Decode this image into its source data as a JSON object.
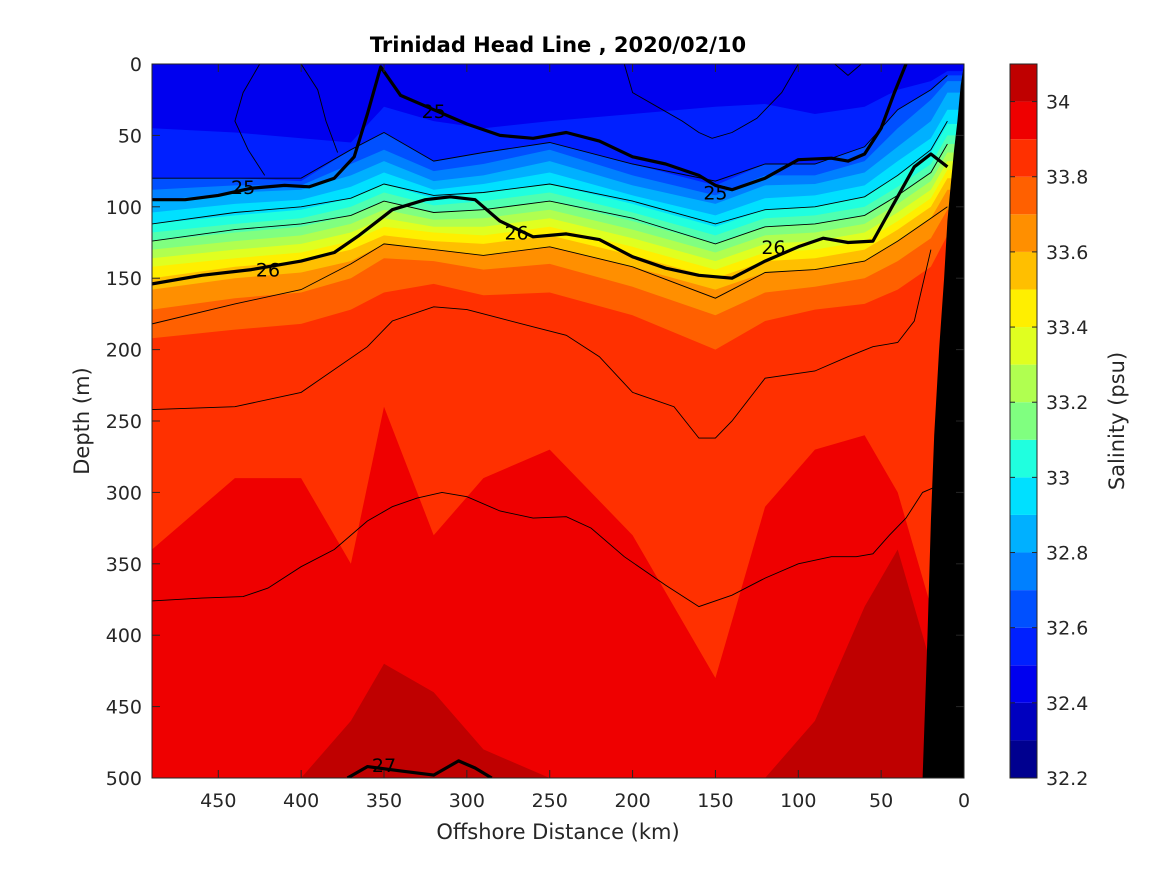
{
  "chart_data": {
    "type": "contour",
    "title": "Trinidad Head Line , 2020/02/10",
    "xlabel": "Offshore Distance (km)",
    "ylabel": "Depth (m)",
    "xlim": [
      490,
      0
    ],
    "ylim": [
      0,
      500
    ],
    "x_reversed": true,
    "y_reversed": true,
    "x_ticks": [
      450,
      400,
      350,
      300,
      250,
      200,
      150,
      100,
      50,
      0
    ],
    "y_ticks": [
      0,
      50,
      100,
      150,
      200,
      250,
      300,
      350,
      400,
      450,
      500
    ],
    "fill_variable": "Salinity (psu)",
    "colorbar": {
      "label": "Salinity (psu)",
      "min": 32.2,
      "max": 34.1,
      "step": 0.1,
      "ticks": [
        32.2,
        32.4,
        32.6,
        32.8,
        33,
        33.2,
        33.4,
        33.6,
        33.8,
        34
      ],
      "colors": [
        "#00008f",
        "#0000bf",
        "#0000ef",
        "#0020ff",
        "#0050ff",
        "#0080ff",
        "#00b0ff",
        "#00e0ff",
        "#20ffdf",
        "#50ffaf",
        "#80ff80",
        "#b0ff50",
        "#e0ff20",
        "#ffef00",
        "#ffbf00",
        "#ff8f00",
        "#ff6000",
        "#ff3000",
        "#ef0000",
        "#bf0000",
        "#8f0000"
      ]
    },
    "bathymetry_color": "#000000",
    "salinity_layers": [
      {
        "x": [
          490,
          440,
          400,
          370,
          350,
          320,
          290,
          250,
          200,
          150,
          120,
          90,
          60,
          40,
          20,
          10
        ],
        "depth": [
          45,
          48,
          52,
          55,
          30,
          40,
          45,
          40,
          35,
          30,
          28,
          35,
          30,
          18,
          12,
          5
        ],
        "salinity": 32.5
      },
      {
        "x": [
          490,
          440,
          400,
          370,
          350,
          320,
          290,
          250,
          200,
          150,
          120,
          90,
          60,
          40,
          20,
          10
        ],
        "depth": [
          80,
          80,
          82,
          60,
          48,
          68,
          62,
          55,
          70,
          85,
          70,
          70,
          58,
          32,
          18,
          8
        ],
        "salinity": 32.6
      },
      {
        "x": [
          490,
          440,
          400,
          370,
          350,
          320,
          290,
          250,
          200,
          150,
          120,
          90,
          60,
          40,
          20,
          10
        ],
        "depth": [
          88,
          85,
          85,
          70,
          60,
          75,
          70,
          60,
          78,
          92,
          78,
          78,
          68,
          45,
          25,
          12
        ],
        "salinity": 32.7
      },
      {
        "x": [
          490,
          440,
          400,
          370,
          350,
          320,
          290,
          250,
          200,
          150,
          120,
          90,
          60,
          40,
          20,
          10
        ],
        "depth": [
          96,
          90,
          88,
          78,
          68,
          82,
          78,
          68,
          85,
          98,
          85,
          84,
          76,
          58,
          40,
          20
        ],
        "salinity": 32.8
      },
      {
        "x": [
          490,
          440,
          400,
          370,
          350,
          320,
          290,
          250,
          200,
          150,
          120,
          90,
          60,
          40,
          20,
          10
        ],
        "depth": [
          104,
          98,
          95,
          86,
          76,
          88,
          84,
          76,
          92,
          106,
          94,
          92,
          85,
          68,
          52,
          32
        ],
        "salinity": 32.9
      },
      {
        "x": [
          490,
          440,
          400,
          370,
          350,
          320,
          290,
          250,
          200,
          150,
          120,
          90,
          60,
          40,
          20,
          10
        ],
        "depth": [
          112,
          106,
          102,
          94,
          84,
          94,
          90,
          84,
          98,
          114,
          102,
          100,
          93,
          78,
          62,
          42
        ],
        "salinity": 33.0
      },
      {
        "x": [
          490,
          440,
          400,
          370,
          350,
          320,
          290,
          250,
          200,
          150,
          120,
          90,
          60,
          40,
          20,
          10
        ],
        "depth": [
          118,
          112,
          108,
          100,
          90,
          99,
          96,
          90,
          104,
          120,
          108,
          106,
          100,
          86,
          70,
          50
        ],
        "salinity": 33.1
      },
      {
        "x": [
          490,
          440,
          400,
          370,
          350,
          320,
          290,
          250,
          200,
          150,
          120,
          90,
          60,
          40,
          20,
          10
        ],
        "depth": [
          124,
          118,
          114,
          106,
          96,
          104,
          102,
          96,
          110,
          126,
          114,
          112,
          106,
          92,
          76,
          56
        ],
        "salinity": 33.2
      },
      {
        "x": [
          490,
          440,
          400,
          370,
          350,
          320,
          290,
          250,
          200,
          150,
          120,
          90,
          60,
          40,
          20,
          10
        ],
        "depth": [
          130,
          124,
          120,
          112,
          102,
          109,
          108,
          102,
          116,
          132,
          120,
          118,
          112,
          98,
          82,
          62
        ],
        "salinity": 33.3
      },
      {
        "x": [
          490,
          440,
          400,
          370,
          350,
          320,
          290,
          250,
          200,
          150,
          120,
          90,
          60,
          40,
          20,
          10
        ],
        "depth": [
          136,
          130,
          126,
          118,
          108,
          114,
          114,
          108,
          122,
          138,
          126,
          124,
          118,
          104,
          88,
          68
        ],
        "salinity": 33.4
      },
      {
        "x": [
          490,
          440,
          400,
          370,
          350,
          320,
          290,
          250,
          200,
          150,
          120,
          90,
          60,
          40,
          20,
          10
        ],
        "depth": [
          142,
          136,
          132,
          124,
          114,
          118,
          120,
          114,
          128,
          144,
          132,
          130,
          124,
          110,
          94,
          74
        ],
        "salinity": 33.5
      },
      {
        "x": [
          490,
          440,
          400,
          370,
          350,
          320,
          290,
          250,
          200,
          150,
          120,
          90,
          60,
          40,
          20,
          10
        ],
        "depth": [
          150,
          142,
          138,
          130,
          120,
          124,
          126,
          120,
          134,
          150,
          138,
          136,
          130,
          116,
          100,
          80
        ],
        "salinity": 33.6
      },
      {
        "x": [
          490,
          440,
          400,
          370,
          350,
          320,
          290,
          250,
          200,
          150,
          120,
          90,
          60,
          40,
          20,
          10
        ],
        "depth": [
          158,
          150,
          146,
          138,
          126,
          130,
          134,
          128,
          142,
          158,
          146,
          144,
          138,
          124,
          108,
          88
        ],
        "salinity": 33.7
      },
      {
        "x": [
          490,
          440,
          400,
          370,
          350,
          320,
          290,
          250,
          200,
          150,
          120,
          90,
          60,
          40,
          20,
          10
        ],
        "depth": [
          172,
          164,
          160,
          150,
          136,
          138,
          144,
          140,
          156,
          176,
          160,
          156,
          150,
          138,
          122,
          102
        ],
        "salinity": 33.8
      },
      {
        "x": [
          490,
          440,
          400,
          370,
          350,
          320,
          290,
          250,
          200,
          150,
          120,
          90,
          60,
          40,
          20,
          10
        ],
        "depth": [
          192,
          186,
          182,
          172,
          160,
          154,
          162,
          160,
          176,
          200,
          180,
          172,
          168,
          158,
          142,
          120
        ],
        "salinity": 33.9
      },
      {
        "x": [
          490,
          440,
          400,
          370,
          350,
          320,
          290,
          250,
          200,
          150,
          120,
          90,
          60,
          40,
          20,
          10
        ],
        "depth": [
          340,
          290,
          290,
          350,
          240,
          330,
          290,
          270,
          330,
          430,
          310,
          270,
          260,
          300,
          380,
          400
        ],
        "salinity": 34.0
      },
      {
        "x": [
          490,
          440,
          400,
          370,
          350,
          320,
          290,
          250,
          200,
          150,
          120,
          90,
          60,
          40,
          20,
          10
        ],
        "depth": [
          510,
          510,
          500,
          460,
          420,
          440,
          480,
          500,
          510,
          510,
          500,
          460,
          380,
          340,
          420,
          500
        ],
        "salinity": 34.1
      }
    ],
    "density_contours": [
      {
        "label": "25",
        "x": [
          490,
          470,
          450,
          430,
          410,
          395,
          380,
          368,
          360,
          352,
          340,
          320,
          300,
          280,
          260,
          240,
          220,
          200,
          180,
          160,
          150,
          140,
          120,
          100,
          80,
          70,
          60,
          50,
          42,
          35
        ],
        "depth": [
          95,
          95,
          92,
          87,
          85,
          86,
          80,
          65,
          35,
          2,
          22,
          32,
          42,
          50,
          52,
          48,
          54,
          65,
          70,
          78,
          85,
          88,
          80,
          67,
          66,
          68,
          63,
          45,
          20,
          0
        ],
        "label_positions": [
          {
            "x": 435,
            "depth": 86
          },
          {
            "x": 320,
            "depth": 33
          },
          {
            "x": 150,
            "depth": 90
          }
        ]
      },
      {
        "label": "26",
        "x": [
          490,
          460,
          430,
          400,
          380,
          365,
          345,
          325,
          310,
          295,
          280,
          260,
          240,
          220,
          200,
          180,
          160,
          140,
          120,
          100,
          85,
          70,
          55,
          30,
          20,
          10
        ],
        "depth": [
          154,
          148,
          144,
          138,
          132,
          120,
          102,
          95,
          93,
          95,
          110,
          121,
          119,
          123,
          135,
          143,
          148,
          150,
          138,
          128,
          122,
          125,
          124,
          72,
          63,
          72
        ],
        "label_positions": [
          {
            "x": 420,
            "depth": 144
          },
          {
            "x": 270,
            "depth": 118
          },
          {
            "x": 115,
            "depth": 128
          }
        ]
      },
      {
        "label": "27",
        "x": [
          372,
          360,
          340,
          320,
          305,
          295,
          285
        ],
        "depth": [
          500,
          492,
          495,
          498,
          488,
          493,
          500
        ],
        "label_positions": [
          {
            "x": 350,
            "depth": 491
          }
        ]
      }
    ],
    "thin_isopycnals": [
      {
        "x": [
          490,
          440,
          400,
          360,
          345,
          320,
          300,
          280,
          260,
          240,
          220,
          200,
          175,
          160,
          150,
          140,
          120,
          90,
          70,
          55,
          40,
          30,
          20
        ],
        "depth": [
          242,
          240,
          230,
          198,
          180,
          170,
          172,
          178,
          184,
          190,
          205,
          230,
          240,
          262,
          262,
          250,
          220,
          215,
          205,
          198,
          195,
          180,
          130
        ]
      },
      {
        "x": [
          490,
          460,
          435,
          420,
          400,
          380,
          360,
          345,
          330,
          315,
          300,
          280,
          260,
          240,
          225,
          205,
          180,
          160,
          140,
          120,
          100,
          80,
          65,
          55,
          45,
          35,
          25,
          15
        ],
        "depth": [
          376,
          374,
          373,
          367,
          352,
          340,
          320,
          310,
          304,
          300,
          303,
          313,
          318,
          317,
          325,
          345,
          365,
          380,
          372,
          360,
          350,
          345,
          345,
          343,
          330,
          318,
          300,
          295
        ]
      },
      {
        "x": [
          490,
          440,
          400,
          370,
          350,
          320,
          290,
          250,
          200,
          150,
          120,
          90,
          60,
          40,
          20,
          10
        ],
        "depth": [
          182,
          168,
          158,
          140,
          126,
          130,
          134,
          128,
          142,
          164,
          146,
          144,
          138,
          124,
          108,
          100
        ]
      },
      {
        "x": [
          490,
          440,
          400,
          370,
          350,
          320,
          290,
          250,
          200,
          150,
          120,
          90,
          60,
          40,
          20,
          10
        ],
        "depth": [
          124,
          116,
          112,
          106,
          96,
          104,
          102,
          96,
          108,
          126,
          114,
          112,
          106,
          92,
          76,
          56
        ]
      },
      {
        "x": [
          490,
          440,
          400,
          370,
          350,
          320,
          290,
          250,
          200,
          150,
          120,
          90,
          60,
          40,
          20,
          10
        ],
        "depth": [
          112,
          104,
          100,
          94,
          84,
          92,
          90,
          84,
          96,
          112,
          102,
          100,
          93,
          78,
          60,
          40
        ]
      },
      {
        "x": [
          490,
          440,
          400,
          370,
          350,
          320,
          290,
          250,
          200,
          150,
          120,
          90,
          60,
          40,
          20,
          10
        ],
        "depth": [
          80,
          80,
          80,
          60,
          48,
          68,
          62,
          55,
          70,
          82,
          70,
          70,
          58,
          32,
          18,
          8
        ]
      },
      {
        "x": [
          425,
          435,
          440,
          432,
          422
        ],
        "depth": [
          0,
          20,
          40,
          60,
          78
        ]
      },
      {
        "x": [
          400,
          390,
          385,
          378
        ],
        "depth": [
          0,
          18,
          40,
          62
        ]
      },
      {
        "x": [
          205,
          200,
          185,
          170,
          160,
          152,
          140,
          125,
          110,
          100
        ],
        "depth": [
          0,
          20,
          30,
          40,
          48,
          52,
          48,
          38,
          20,
          0
        ]
      },
      {
        "x": [
          78,
          70,
          62
        ],
        "depth": [
          0,
          8,
          0
        ]
      }
    ],
    "bathymetry": {
      "x": [
        25,
        22,
        20,
        18,
        15,
        12,
        10,
        8,
        6,
        4,
        2,
        0
      ],
      "depth": [
        500,
        400,
        320,
        260,
        200,
        150,
        110,
        85,
        60,
        40,
        15,
        0
      ]
    }
  }
}
